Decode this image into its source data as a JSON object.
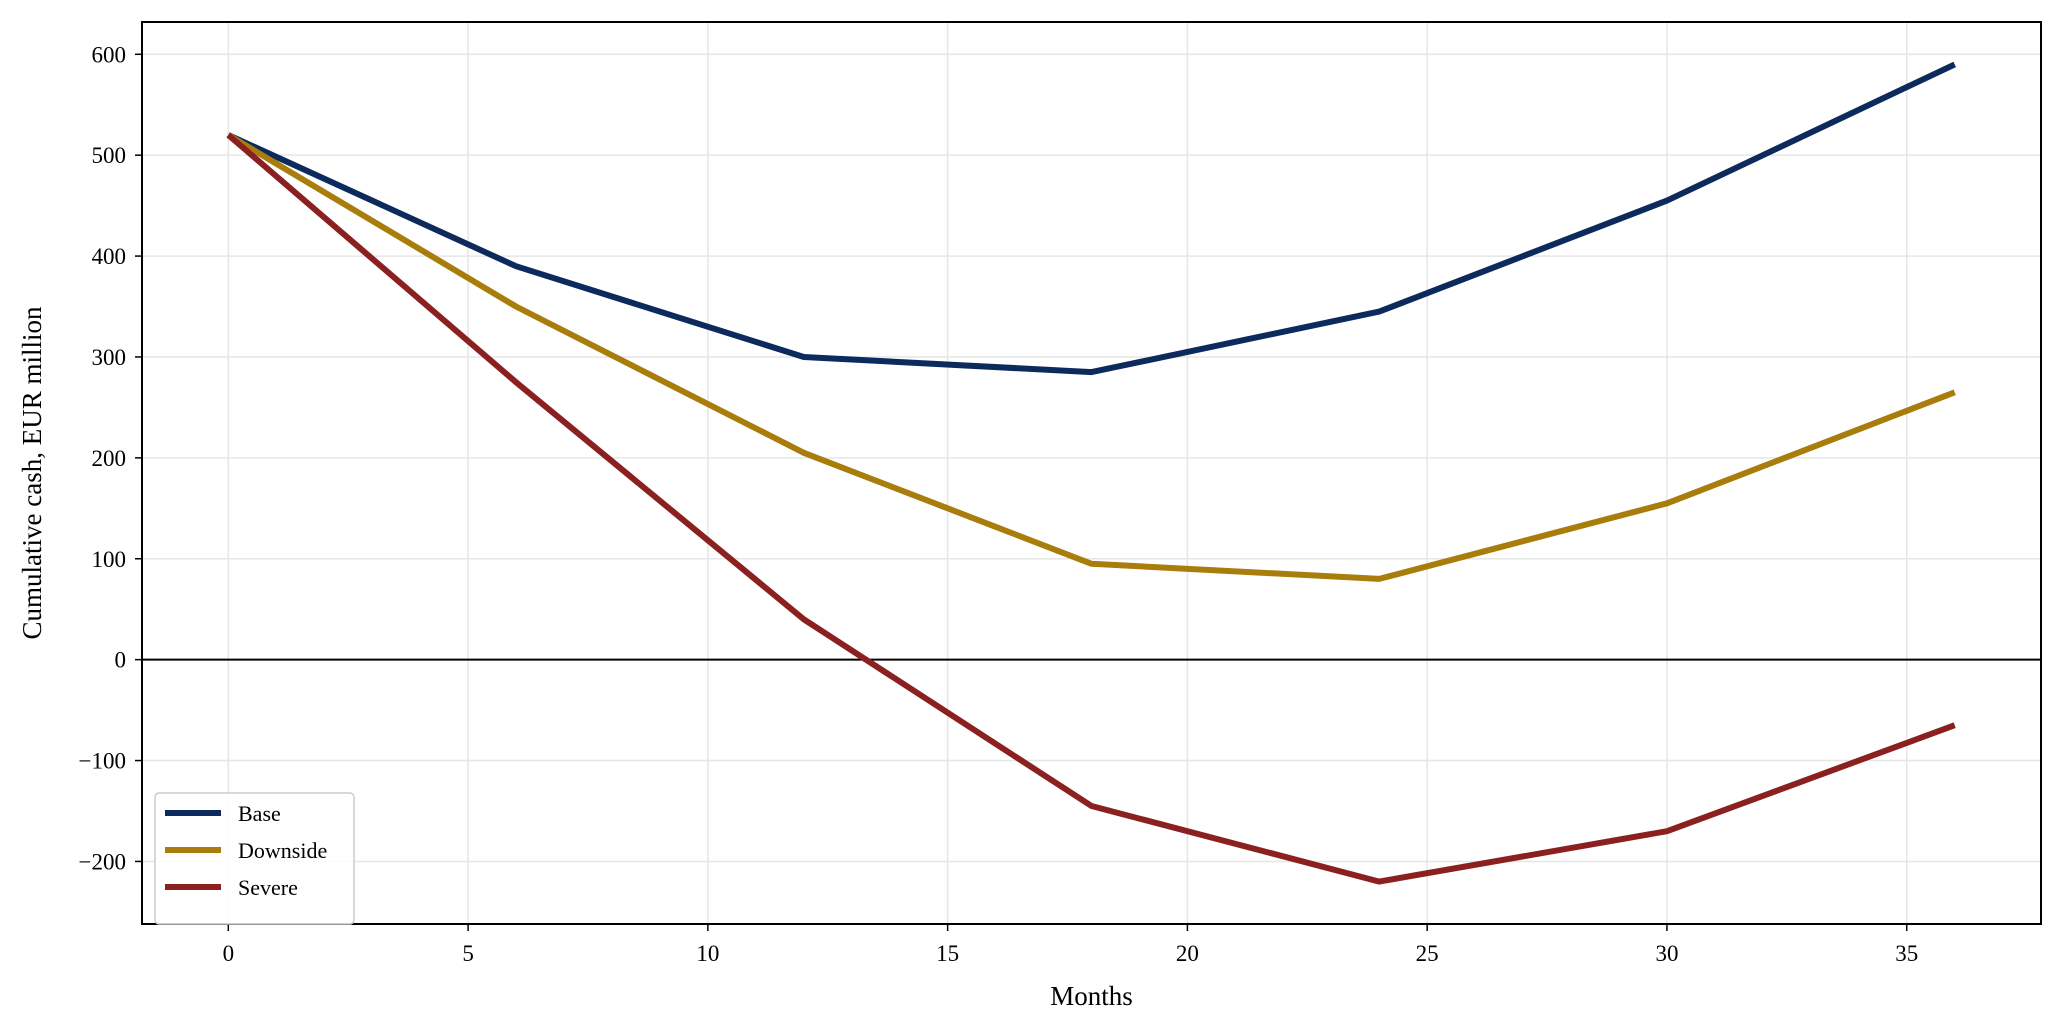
{
  "chart_data": {
    "type": "line",
    "title": "",
    "xlabel": "Months",
    "ylabel": "Cumulative cash, EUR million",
    "x": [
      0,
      6,
      12,
      18,
      24,
      30,
      36
    ],
    "xlim": [
      -1.8,
      37.8
    ],
    "ylim": [
      -262,
      632
    ],
    "xticks": [
      0,
      5,
      10,
      15,
      20,
      25,
      30,
      35
    ],
    "xtick_labels": [
      "0",
      "5",
      "10",
      "15",
      "20",
      "25",
      "30",
      "35"
    ],
    "yticks": [
      600,
      500,
      400,
      300,
      200,
      100,
      0,
      -100,
      -200
    ],
    "ytick_labels": [
      "600",
      "500",
      "400",
      "300",
      "200",
      "100",
      "0",
      "−100",
      "−200"
    ],
    "grid": true,
    "zero_line": true,
    "legend_position": "lower-left",
    "series": [
      {
        "name": "Base",
        "color": "#0d2a5c",
        "values": [
          520,
          390,
          300,
          285,
          345,
          455,
          590
        ]
      },
      {
        "name": "Downside",
        "color": "#a87d0c",
        "values": [
          520,
          350,
          205,
          95,
          80,
          155,
          265
        ]
      },
      {
        "name": "Severe",
        "color": "#8b2020",
        "values": [
          520,
          275,
          40,
          -145,
          -220,
          -170,
          -65
        ]
      }
    ]
  }
}
